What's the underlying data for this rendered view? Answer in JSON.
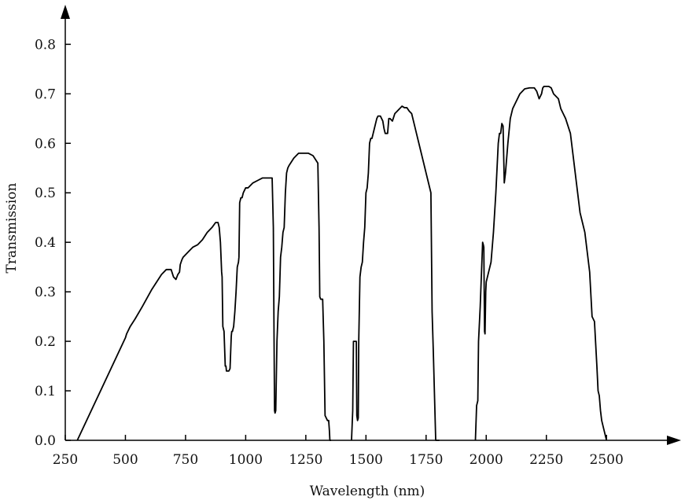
{
  "chart_data": {
    "type": "line",
    "xlabel": "Wavelength (nm)",
    "ylabel": "Transmission",
    "xlim": [
      250,
      2810
    ],
    "ylim": [
      0,
      0.88
    ],
    "x_ticks": [
      250,
      500,
      750,
      1000,
      1250,
      1500,
      1750,
      2000,
      2250,
      2500
    ],
    "y_ticks": [
      0.0,
      0.1,
      0.2,
      0.3,
      0.4,
      0.5,
      0.6,
      0.7,
      0.8
    ],
    "x_tick_labels": [
      "250",
      "500",
      "750",
      "1000",
      "1250",
      "1500",
      "1750",
      "2000",
      "2250",
      "2500"
    ],
    "y_tick_labels": [
      "0.0",
      "0.1",
      "0.2",
      "0.3",
      "0.4",
      "0.5",
      "0.6",
      "0.7",
      "0.8"
    ],
    "grid": false,
    "legend": "none",
    "line_color": "#000000",
    "series": [
      {
        "x": [
          300,
          500,
          505,
          510,
          520,
          540,
          570,
          610,
          650,
          670,
          690,
          700,
          710,
          718,
          725,
          728,
          735,
          740,
          760,
          780,
          800,
          820,
          840,
          860,
          875,
          885,
          890,
          895,
          900,
          902,
          905,
          910,
          915,
          918,
          920,
          925,
          930,
          935,
          940,
          942,
          945,
          950,
          955,
          960,
          965,
          970,
          972,
          975,
          980,
          985,
          990,
          995,
          1000,
          1010,
          1030,
          1050,
          1070,
          1090,
          1110,
          1115,
          1118,
          1120,
          1122,
          1125,
          1130,
          1135,
          1140,
          1145,
          1150,
          1155,
          1160,
          1165,
          1170,
          1175,
          1180,
          1200,
          1220,
          1240,
          1260,
          1280,
          1300,
          1305,
          1308,
          1312,
          1315,
          1320,
          1325,
          1330,
          1340,
          1345,
          1348,
          1350,
          1355
        ],
        "y": [
          0.0,
          0.207,
          0.215,
          0.22,
          0.23,
          0.245,
          0.27,
          0.305,
          0.335,
          0.345,
          0.345,
          0.33,
          0.325,
          0.335,
          0.34,
          0.355,
          0.365,
          0.37,
          0.38,
          0.39,
          0.395,
          0.405,
          0.42,
          0.43,
          0.44,
          0.44,
          0.43,
          0.4,
          0.34,
          0.33,
          0.23,
          0.22,
          0.15,
          0.15,
          0.14,
          0.14,
          0.14,
          0.145,
          0.21,
          0.22,
          0.22,
          0.23,
          0.26,
          0.3,
          0.35,
          0.36,
          0.37,
          0.48,
          0.49,
          0.49,
          0.5,
          0.505,
          0.51,
          0.51,
          0.52,
          0.525,
          0.53,
          0.53,
          0.53,
          0.43,
          0.2,
          0.06,
          0.055,
          0.06,
          0.2,
          0.26,
          0.29,
          0.37,
          0.39,
          0.42,
          0.43,
          0.5,
          0.54,
          0.55,
          0.555,
          0.57,
          0.58,
          0.58,
          0.58,
          0.575,
          0.56,
          0.43,
          0.29,
          0.285,
          0.285,
          0.285,
          0.2,
          0.05,
          0.04,
          0.04,
          0.02,
          0.0,
          0.0
        ]
      },
      {
        "x": [
          1440,
          1445,
          1448,
          1450,
          1455,
          1460,
          1462,
          1465,
          1468,
          1470,
          1475,
          1480,
          1485,
          1490,
          1495,
          1500,
          1505,
          1510,
          1515,
          1520,
          1525,
          1530,
          1535,
          1540,
          1545,
          1550,
          1560,
          1570,
          1575,
          1580,
          1590,
          1595,
          1600,
          1610,
          1620,
          1630,
          1650,
          1660,
          1670,
          1680,
          1690,
          1700,
          1710,
          1720,
          1730,
          1740,
          1745,
          1750,
          1760,
          1770,
          1775,
          1780,
          1790,
          1795,
          1800,
          1805
        ],
        "y": [
          0.0,
          0.06,
          0.2,
          0.2,
          0.2,
          0.2,
          0.05,
          0.04,
          0.045,
          0.2,
          0.33,
          0.35,
          0.36,
          0.4,
          0.43,
          0.5,
          0.51,
          0.54,
          0.6,
          0.61,
          0.61,
          0.62,
          0.63,
          0.64,
          0.65,
          0.655,
          0.655,
          0.645,
          0.63,
          0.62,
          0.62,
          0.65,
          0.65,
          0.645,
          0.66,
          0.665,
          0.675,
          0.672,
          0.672,
          0.665,
          0.66,
          0.64,
          0.62,
          0.6,
          0.58,
          0.56,
          0.55,
          0.54,
          0.52,
          0.5,
          0.26,
          0.18,
          0.0,
          0.0,
          0.0,
          0.0
        ]
      },
      {
        "x": [
          1955,
          1960,
          1965,
          1968,
          1975,
          1985,
          1988,
          1990,
          1993,
          1995,
          1998,
          2000,
          2005,
          2010,
          2020,
          2030,
          2040,
          2045,
          2050,
          2055,
          2060,
          2065,
          2070,
          2075,
          2080,
          2085,
          2090,
          2100,
          2110,
          2120,
          2140,
          2160,
          2180,
          2200,
          2210,
          2220,
          2230,
          2235,
          2240,
          2250,
          2260,
          2270,
          2280,
          2290,
          2300,
          2310,
          2320,
          2330,
          2350,
          2360,
          2380,
          2390,
          2400,
          2410,
          2420,
          2430,
          2440,
          2450,
          2460,
          2465,
          2470,
          2475,
          2480,
          2490,
          2500
        ],
        "y": [
          0.0,
          0.07,
          0.08,
          0.2,
          0.27,
          0.4,
          0.395,
          0.39,
          0.22,
          0.215,
          0.3,
          0.32,
          0.33,
          0.34,
          0.36,
          0.42,
          0.5,
          0.55,
          0.6,
          0.62,
          0.62,
          0.64,
          0.635,
          0.52,
          0.54,
          0.57,
          0.6,
          0.65,
          0.67,
          0.68,
          0.7,
          0.71,
          0.712,
          0.712,
          0.705,
          0.69,
          0.7,
          0.712,
          0.715,
          0.715,
          0.715,
          0.712,
          0.7,
          0.695,
          0.69,
          0.67,
          0.66,
          0.65,
          0.62,
          0.58,
          0.5,
          0.46,
          0.44,
          0.42,
          0.38,
          0.34,
          0.25,
          0.24,
          0.15,
          0.1,
          0.09,
          0.06,
          0.04,
          0.02,
          0.0
        ]
      }
    ]
  }
}
